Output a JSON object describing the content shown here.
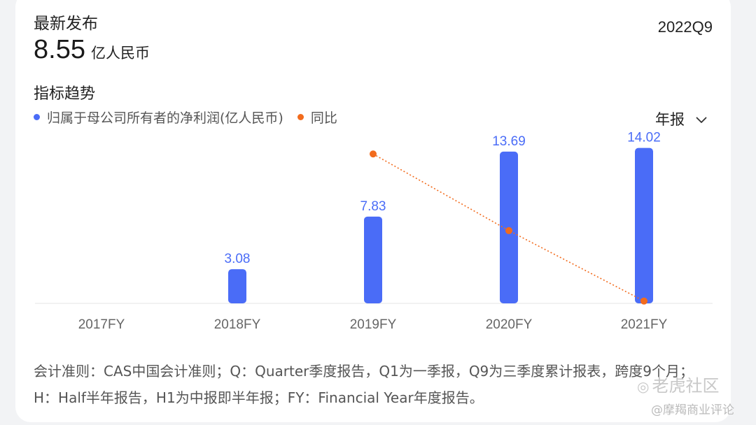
{
  "header": {
    "latest_label": "最新发布",
    "latest_value": "8.55",
    "latest_unit": "亿人民币",
    "period": "2022Q9"
  },
  "section_title": "指标趋势",
  "legend": [
    {
      "label": "归属于母公司所有者的净利润(亿人民币)",
      "color": "#4a6cf7"
    },
    {
      "label": "同比",
      "color": "#f26b1d"
    }
  ],
  "period_select": {
    "label": "年报",
    "icon": "chevron-down-icon"
  },
  "chart_data": {
    "type": "bar",
    "categories": [
      "2017FY",
      "2018FY",
      "2019FY",
      "2020FY",
      "2021FY"
    ],
    "series": [
      {
        "name": "归属于母公司所有者的净利润(亿人民币)",
        "type": "bar",
        "values": [
          null,
          3.08,
          7.83,
          13.69,
          14.02
        ],
        "labels": [
          "",
          "3.08",
          "7.83",
          "13.69",
          "14.02"
        ],
        "color": "#4a6cf7"
      },
      {
        "name": "同比",
        "type": "line",
        "values": [
          null,
          null,
          154,
          75,
          2.4
        ],
        "color": "#f26b1d",
        "style": "dotted"
      }
    ],
    "ylim": [
      0,
      15
    ],
    "y2lim": [
      0,
      165
    ],
    "grid": false,
    "legend_position": "top-left"
  },
  "footnote": "会计准则：CAS中国会计准则；Q：Quarter季度报告，Q1为一季报，Q9为三季度累计报表，跨度9个月；H：Half半年报告，H1为中报即半年报；FY：Financial Year年度报告。",
  "watermark": {
    "main": "老虎社区",
    "sub": "@摩羯商业评论"
  }
}
